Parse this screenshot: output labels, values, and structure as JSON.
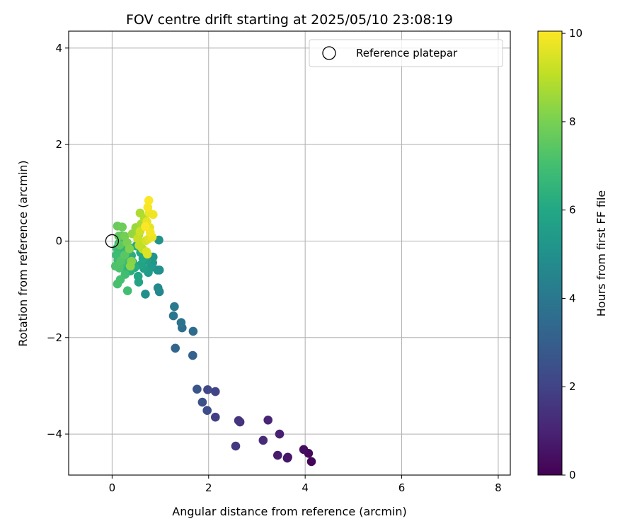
{
  "chart_data": {
    "type": "scatter",
    "title": "FOV centre drift starting at 2025/05/10 23:08:19",
    "xlabel": "Angular distance from reference (arcmin)",
    "ylabel": "Rotation from reference (arcmin)",
    "xlim": [
      -0.9,
      8.25
    ],
    "ylim": [
      -4.85,
      4.35
    ],
    "xticks": [
      0,
      2,
      4,
      6,
      8
    ],
    "xtick_labels": [
      "0",
      "2",
      "4",
      "6",
      "8"
    ],
    "yticks": [
      -4,
      -2,
      0,
      2,
      4
    ],
    "ytick_labels": [
      "−4",
      "−2",
      "0",
      "2",
      "4"
    ],
    "grid": true,
    "legend": {
      "position": "top-right",
      "entries": [
        "Reference platepar"
      ]
    },
    "reference_point": {
      "x": 0,
      "y": 0,
      "label": "Reference platepar"
    },
    "colorbar": {
      "label": "Hours from first FF file",
      "range": [
        0,
        10.05
      ],
      "ticks": [
        0,
        2,
        4,
        6,
        8,
        10
      ],
      "tick_labels": [
        "0",
        "2",
        "4",
        "6",
        "8",
        "10"
      ],
      "colormap": "viridis"
    },
    "points": [
      {
        "x": 4.13,
        "y": -4.57,
        "t": 0.1
      },
      {
        "x": 4.07,
        "y": -4.4,
        "t": 0.2
      },
      {
        "x": 3.97,
        "y": -4.32,
        "t": 0.35
      },
      {
        "x": 3.64,
        "y": -4.48,
        "t": 0.5
      },
      {
        "x": 3.63,
        "y": -4.5,
        "t": 0.6
      },
      {
        "x": 3.43,
        "y": -4.44,
        "t": 0.75
      },
      {
        "x": 3.47,
        "y": -4.0,
        "t": 0.9
      },
      {
        "x": 3.23,
        "y": -3.71,
        "t": 1.05
      },
      {
        "x": 3.13,
        "y": -4.13,
        "t": 1.2
      },
      {
        "x": 2.65,
        "y": -3.75,
        "t": 1.4
      },
      {
        "x": 2.62,
        "y": -3.72,
        "t": 1.5
      },
      {
        "x": 2.56,
        "y": -4.25,
        "t": 1.65
      },
      {
        "x": 2.14,
        "y": -3.65,
        "t": 1.85
      },
      {
        "x": 2.14,
        "y": -3.12,
        "t": 2.0
      },
      {
        "x": 1.98,
        "y": -3.08,
        "t": 2.15
      },
      {
        "x": 1.97,
        "y": -3.51,
        "t": 2.3
      },
      {
        "x": 1.87,
        "y": -3.34,
        "t": 2.45
      },
      {
        "x": 1.76,
        "y": -3.07,
        "t": 2.65
      },
      {
        "x": 1.67,
        "y": -2.37,
        "t": 3.1
      },
      {
        "x": 1.31,
        "y": -2.22,
        "t": 3.3
      },
      {
        "x": 1.68,
        "y": -1.87,
        "t": 3.5
      },
      {
        "x": 1.45,
        "y": -1.8,
        "t": 3.65
      },
      {
        "x": 1.43,
        "y": -1.69,
        "t": 3.8
      },
      {
        "x": 1.27,
        "y": -1.55,
        "t": 3.95
      },
      {
        "x": 1.29,
        "y": -1.36,
        "t": 4.1
      },
      {
        "x": 0.98,
        "y": -1.05,
        "t": 4.6
      },
      {
        "x": 0.95,
        "y": -0.97,
        "t": 4.75
      },
      {
        "x": 0.69,
        "y": -1.1,
        "t": 4.9
      },
      {
        "x": 0.98,
        "y": -0.6,
        "t": 5.0
      },
      {
        "x": 0.94,
        "y": -0.6,
        "t": 5.05
      },
      {
        "x": 0.97,
        "y": 0.02,
        "t": 5.1
      },
      {
        "x": 0.85,
        "y": -0.33,
        "t": 5.2
      },
      {
        "x": 0.84,
        "y": -0.45,
        "t": 5.3
      },
      {
        "x": 0.8,
        "y": -0.55,
        "t": 5.4
      },
      {
        "x": 0.75,
        "y": -0.65,
        "t": 5.5
      },
      {
        "x": 0.72,
        "y": -0.4,
        "t": 5.6
      },
      {
        "x": 0.66,
        "y": -0.57,
        "t": 5.7
      },
      {
        "x": 0.6,
        "y": -0.49,
        "t": 5.8
      },
      {
        "x": 0.55,
        "y": -0.85,
        "t": 5.85
      },
      {
        "x": 0.54,
        "y": -0.73,
        "t": 5.9
      },
      {
        "x": 0.64,
        "y": -0.36,
        "t": 6.0
      },
      {
        "x": 0.59,
        "y": -0.24,
        "t": 6.05
      },
      {
        "x": 0.5,
        "y": -0.1,
        "t": 6.1
      },
      {
        "x": 0.47,
        "y": -0.55,
        "t": 6.15
      },
      {
        "x": 0.43,
        "y": -0.44,
        "t": 6.2
      },
      {
        "x": 0.4,
        "y": -0.3,
        "t": 6.25
      },
      {
        "x": 0.38,
        "y": -0.62,
        "t": 6.3
      },
      {
        "x": 0.33,
        "y": -0.12,
        "t": 6.35
      },
      {
        "x": 0.3,
        "y": -0.55,
        "t": 6.4
      },
      {
        "x": 0.29,
        "y": -0.25,
        "t": 6.45
      },
      {
        "x": 0.25,
        "y": -0.32,
        "t": 6.5
      },
      {
        "x": 0.22,
        "y": -0.18,
        "t": 6.55
      },
      {
        "x": 0.2,
        "y": 0.1,
        "t": 6.6
      },
      {
        "x": 0.18,
        "y": -0.06,
        "t": 6.65
      },
      {
        "x": 0.14,
        "y": -0.05,
        "t": 6.7
      },
      {
        "x": 0.12,
        "y": -0.4,
        "t": 6.75
      },
      {
        "x": 0.1,
        "y": -0.15,
        "t": 6.8
      },
      {
        "x": 0.09,
        "y": -0.29,
        "t": 6.85
      },
      {
        "x": 0.24,
        "y": -0.45,
        "t": 6.9
      },
      {
        "x": 0.27,
        "y": -0.69,
        "t": 6.95
      },
      {
        "x": 0.32,
        "y": -1.03,
        "t": 7.0
      },
      {
        "x": 0.17,
        "y": -0.8,
        "t": 7.05
      },
      {
        "x": 0.11,
        "y": -0.89,
        "t": 7.1
      },
      {
        "x": 0.15,
        "y": -0.56,
        "t": 7.15
      },
      {
        "x": 0.07,
        "y": -0.52,
        "t": 7.2
      },
      {
        "x": 0.18,
        "y": -0.41,
        "t": 7.3
      },
      {
        "x": 0.26,
        "y": -0.29,
        "t": 7.4
      },
      {
        "x": 0.16,
        "y": -0.08,
        "t": 7.5
      },
      {
        "x": 0.14,
        "y": 0.1,
        "t": 7.6
      },
      {
        "x": 0.11,
        "y": 0.31,
        "t": 7.7
      },
      {
        "x": 0.21,
        "y": 0.29,
        "t": 7.8
      },
      {
        "x": 0.26,
        "y": 0.1,
        "t": 7.9
      },
      {
        "x": 0.31,
        "y": -0.03,
        "t": 8.0
      },
      {
        "x": 0.36,
        "y": -0.16,
        "t": 8.1
      },
      {
        "x": 0.4,
        "y": -0.42,
        "t": 8.2
      },
      {
        "x": 0.38,
        "y": -0.52,
        "t": 8.3
      },
      {
        "x": 0.42,
        "y": 0.15,
        "t": 8.4
      },
      {
        "x": 0.49,
        "y": 0.28,
        "t": 8.5
      },
      {
        "x": 0.55,
        "y": 0.13,
        "t": 8.6
      },
      {
        "x": 0.6,
        "y": 0.35,
        "t": 8.7
      },
      {
        "x": 0.58,
        "y": 0.58,
        "t": 8.8
      },
      {
        "x": 0.67,
        "y": 0.47,
        "t": 8.9
      },
      {
        "x": 0.63,
        "y": -0.16,
        "t": 9.0
      },
      {
        "x": 0.56,
        "y": -0.09,
        "t": 9.1
      },
      {
        "x": 0.53,
        "y": 0.05,
        "t": 9.2
      },
      {
        "x": 0.58,
        "y": 0.2,
        "t": 9.3
      },
      {
        "x": 0.7,
        "y": 0.01,
        "t": 9.4
      },
      {
        "x": 0.71,
        "y": -0.22,
        "t": 9.5
      },
      {
        "x": 0.73,
        "y": -0.27,
        "t": 9.55
      },
      {
        "x": 0.76,
        "y": 0.05,
        "t": 9.6
      },
      {
        "x": 0.78,
        "y": 0.28,
        "t": 9.65
      },
      {
        "x": 0.72,
        "y": 0.4,
        "t": 9.7
      },
      {
        "x": 0.83,
        "y": 0.08,
        "t": 9.75
      },
      {
        "x": 0.77,
        "y": 0.58,
        "t": 9.8
      },
      {
        "x": 0.85,
        "y": 0.55,
        "t": 9.85
      },
      {
        "x": 0.79,
        "y": 0.18,
        "t": 9.9
      },
      {
        "x": 0.74,
        "y": 0.7,
        "t": 9.95
      },
      {
        "x": 0.76,
        "y": 0.84,
        "t": 10.0
      },
      {
        "x": 0.69,
        "y": 0.3,
        "t": 10.02
      }
    ]
  }
}
